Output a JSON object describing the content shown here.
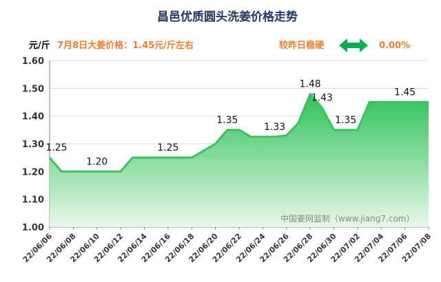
{
  "header": {
    "title": "昌邑优质圆头洗姜价格走势",
    "unit": "元/斤",
    "headline": "7月8日大姜价格：1.45元/斤左右",
    "compare_label": "较昨日稳硬",
    "compare_arrow_icon": "double-arrow-icon",
    "compare_value": "0.00%",
    "accent_color": "#ed7d31",
    "arrow_color": "#00b050"
  },
  "watermark": "中国姜网监制（www.jiang7.com）",
  "chart_data": {
    "type": "area",
    "x": [
      "22/06/06",
      "22/06/07",
      "22/06/08",
      "22/06/09",
      "22/06/10",
      "22/06/11",
      "22/06/12",
      "22/06/13",
      "22/06/14",
      "22/06/15",
      "22/06/16",
      "22/06/17",
      "22/06/18",
      "22/06/19",
      "22/06/20",
      "22/06/21",
      "22/06/22",
      "22/06/23",
      "22/06/24",
      "22/06/25",
      "22/06/26",
      "22/06/27",
      "22/06/28",
      "22/06/29",
      "22/06/30",
      "22/07/01",
      "22/07/02",
      "22/07/03",
      "22/07/04",
      "22/07/05",
      "22/07/06",
      "22/07/07",
      "22/07/08"
    ],
    "values": [
      1.25,
      1.2,
      1.2,
      1.2,
      1.2,
      1.2,
      1.2,
      1.25,
      1.25,
      1.25,
      1.25,
      1.25,
      1.25,
      1.275,
      1.3,
      1.35,
      1.35,
      1.325,
      1.325,
      1.325,
      1.33,
      1.375,
      1.48,
      1.43,
      1.35,
      1.35,
      1.35,
      1.45,
      1.45,
      1.45,
      1.45,
      1.45,
      1.45
    ],
    "xtick_labels": [
      "22/06/06",
      "22/06/08",
      "22/06/10",
      "22/06/12",
      "22/06/14",
      "22/06/16",
      "22/06/18",
      "22/06/20",
      "22/06/22",
      "22/06/24",
      "22/06/26",
      "22/06/28",
      "22/06/30",
      "22/07/02",
      "22/07/04",
      "22/07/06",
      "22/07/08"
    ],
    "ytick_labels": [
      "1.00",
      "1.10",
      "1.20",
      "1.30",
      "1.40",
      "1.50",
      "1.60"
    ],
    "ylim": [
      1.0,
      1.6
    ],
    "data_labels": [
      {
        "index": 0,
        "text": "1.25"
      },
      {
        "index": 4,
        "text": "1.20"
      },
      {
        "index": 10,
        "text": "1.25"
      },
      {
        "index": 15,
        "text": "1.35"
      },
      {
        "index": 19,
        "text": "1.33"
      },
      {
        "index": 22,
        "text": "1.48"
      },
      {
        "index": 23,
        "text": "1.43"
      },
      {
        "index": 25,
        "text": "1.35"
      },
      {
        "index": 30,
        "text": "1.45"
      }
    ],
    "line_color": "#3fbf5f",
    "fill_top_color": "#2fc25b",
    "fill_bottom_color": "#e8f7e8",
    "grid": true
  }
}
